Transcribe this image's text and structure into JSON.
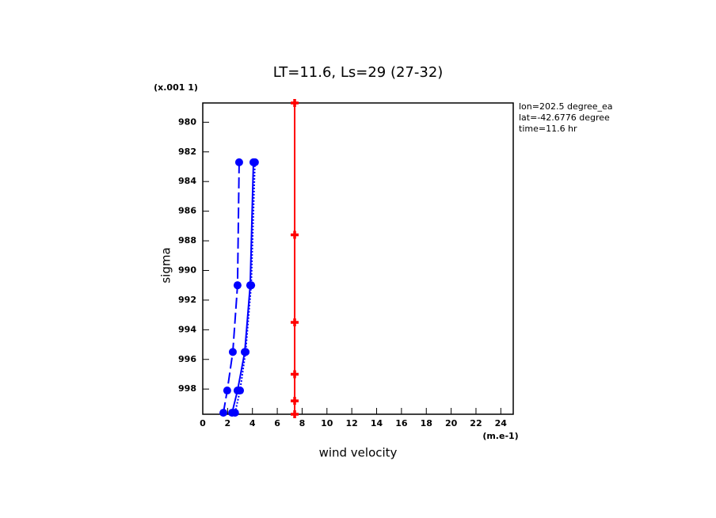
{
  "chart_data": {
    "type": "line",
    "title": "LT=11.6, Ls=29 (27-32)",
    "x_label": "wind velocity",
    "x_unit": "(m.e-1)",
    "y_label": "sigma",
    "y_unit": "(x.001 1)",
    "annotations": [
      "lon=202.5 degree_ea",
      "lat=-42.6776 degree",
      "time=11.6 hr"
    ],
    "xlim": [
      0,
      25
    ],
    "xticks": [
      0,
      2,
      4,
      6,
      8,
      10,
      12,
      14,
      16,
      18,
      20,
      22,
      24
    ],
    "ylim": [
      978.7,
      999.7
    ],
    "yticks": [
      980,
      982,
      984,
      986,
      988,
      990,
      992,
      994,
      996,
      998
    ],
    "y_inverted": true,
    "series": [
      {
        "color": "#0000ff",
        "line_style": "dashed",
        "marker": "circle",
        "x": [
          2.93,
          2.8,
          2.42,
          1.97,
          1.66
        ],
        "values": [
          982.7,
          991.0,
          995.5,
          998.1,
          999.6
        ]
      },
      {
        "color": "#0000ff",
        "line_style": "solid",
        "marker": "circle",
        "x": [
          4.08,
          3.82,
          3.38,
          2.8,
          2.36
        ],
        "values": [
          982.7,
          991.0,
          995.5,
          998.1,
          999.6
        ]
      },
      {
        "color": "#0000ff",
        "line_style": "dotted",
        "marker": "circle",
        "x": [
          4.2,
          3.9,
          3.45,
          3.0,
          2.6
        ],
        "values": [
          982.7,
          991.0,
          995.5,
          998.1,
          999.6
        ]
      },
      {
        "color": "#ff0000",
        "line_style": "solid",
        "marker": "plus",
        "x": [
          7.4,
          7.4,
          7.4,
          7.4,
          7.4,
          7.4
        ],
        "values": [
          978.7,
          987.6,
          993.5,
          997.0,
          998.8,
          999.7
        ]
      }
    ]
  }
}
